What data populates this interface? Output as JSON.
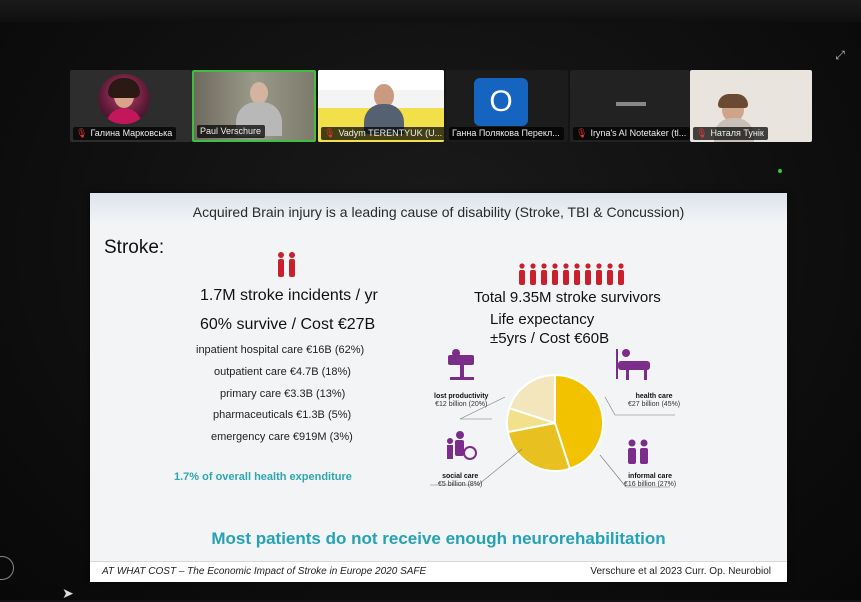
{
  "participants": [
    {
      "name": "Галина Марковська",
      "muted": true
    },
    {
      "name": "Paul Verschure",
      "muted": false,
      "active_speaker": true
    },
    {
      "name": "Vadym TERENTYUK (U...",
      "muted": true
    },
    {
      "name": "Ганна Полякова Перекл...",
      "muted": false,
      "avatar_letter": "O"
    },
    {
      "name": "Iryna's AI Notetaker (tl...",
      "muted": true
    },
    {
      "name": "Наталя Тунік",
      "muted": true
    }
  ],
  "slide": {
    "header": "Acquired Brain injury is a leading cause of disability (Stroke, TBI & Concussion)",
    "stroke_heading": "Stroke:",
    "incidents": "1.7M stroke incidents / yr",
    "survive_cost": "60% survive / Cost €27B",
    "survivors": "Total 9.35M stroke survivors",
    "life_expectancy": "Life expectancy",
    "life_cost": "±5yrs / Cost €60B",
    "cost_items": [
      "inpatient hospital care €16B (62%)",
      "outpatient care €4.7B (18%)",
      "primary care €3.3B (13%)",
      "pharmaceuticals €1.3B (5%)",
      "emergency care €919M (3%)"
    ],
    "health_expenditure": "1.7% of overall health expenditure",
    "main_message": "Most patients do not receive enough neurorehabilitation",
    "footer_left": "AT WHAT COST – The Economic Impact of Stroke in Europe 2020 SAFE",
    "footer_right": "Verschure et al 2023 Curr. Op. Neurobiol"
  },
  "chart_data": {
    "type": "pie",
    "slices": [
      {
        "label": "health care",
        "value_text": "€27 billion (45%)",
        "value": 45,
        "color": "#f2c200"
      },
      {
        "label": "informal care",
        "value_text": "€16 billion (27%)",
        "value": 27,
        "color": "#e8c020"
      },
      {
        "label": "social care",
        "value_text": "€5 billion (8%)",
        "value": 8,
        "color": "#f3e08a"
      },
      {
        "label": "lost productivity",
        "value_text": "€12 billion (20%)",
        "value": 20,
        "color": "#f4e6bc"
      }
    ]
  },
  "colors": {
    "accent_teal": "#24a2b6",
    "person_icon_red": "#c8202c",
    "icon_purple": "#7b2d8a",
    "active_speaker_border": "#3fbf3f"
  }
}
